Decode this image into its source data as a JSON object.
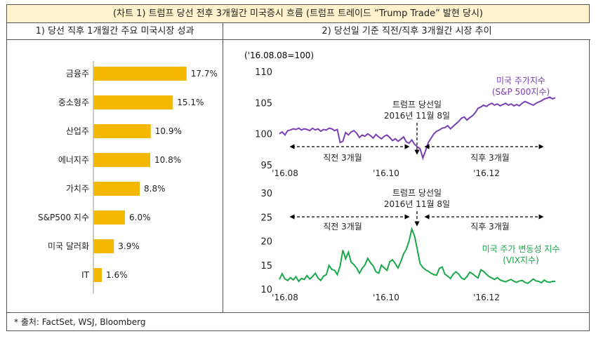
{
  "header": {
    "title": "(차트 1) 트럼프 당선 전후 3개월간 미국증시 흐름 (트럼프 트레이드 “Trump Trade” 발현 당시)"
  },
  "left_panel": {
    "title": "1) 당선 직후 1개월간 주요 미국시장 성과"
  },
  "right_panel": {
    "title": "2) 당선일 기준 직전/직후 3개월간 시장 추이",
    "index_note": "('16.08.08=100)"
  },
  "footer": {
    "source": "* 출처: FactSet, WSJ, Bloomberg"
  },
  "colors": {
    "bar": "#f5b800",
    "sp500": "#7a3fb5",
    "vix": "#1aa84a"
  },
  "chart_data": [
    {
      "type": "bar",
      "orientation": "horizontal",
      "categories": [
        "금융주",
        "중소형주",
        "산업주",
        "에너지주",
        "가치주",
        "S&P500 지수",
        "미국 달러화",
        "IT"
      ],
      "values": [
        17.7,
        15.1,
        10.9,
        10.8,
        8.8,
        6.0,
        3.9,
        1.6
      ],
      "value_labels": [
        "17.7%",
        "15.1%",
        "10.9%",
        "10.8%",
        "8.8%",
        "6.0%",
        "3.9%",
        "1.6%"
      ],
      "xlim": [
        0,
        20
      ]
    },
    {
      "type": "line",
      "ylim": [
        95,
        110
      ],
      "yticks": [
        "110",
        "105",
        "100",
        "95"
      ],
      "xticks": [
        "'16.08",
        "'16.10",
        "'16.12"
      ],
      "annotations": {
        "event": "트럼프 당선일",
        "event_date": "2016년 11월 8일",
        "before": "직전 3개월",
        "after": "직후 3개월"
      },
      "series": [
        {
          "name": "미국 주가지수",
          "name2": "(S&P 500지수)",
          "values": [
            100.0,
            100.3,
            99.8,
            100.5,
            100.6,
            100.8,
            100.7,
            100.9,
            100.6,
            100.8,
            100.7,
            100.5,
            100.9,
            100.6,
            100.8,
            100.4,
            100.7,
            100.6,
            100.9,
            100.8,
            100.5,
            100.7,
            98.6,
            98.8,
            100.2,
            99.8,
            100.3,
            100.5,
            100.1,
            99.4,
            99.8,
            99.6,
            100.0,
            99.7,
            99.3,
            99.9,
            99.5,
            99.2,
            99.6,
            99.8,
            99.4,
            98.9,
            99.2,
            98.8,
            99.1,
            99.5,
            98.7,
            98.5,
            99.0,
            98.3,
            97.9,
            97.6,
            96.1,
            97.3,
            98.6,
            99.3,
            100.0,
            100.4,
            100.6,
            100.9,
            101.0,
            101.3,
            100.8,
            101.2,
            101.6,
            102.0,
            102.5,
            102.7,
            102.2,
            102.6,
            102.9,
            103.4,
            104.1,
            104.3,
            104.6,
            104.4,
            104.7,
            104.9,
            104.6,
            104.8,
            104.5,
            104.7,
            104.9,
            104.6,
            104.8,
            104.5,
            104.7,
            104.5,
            104.9,
            105.2,
            105.0,
            104.8,
            104.6,
            104.9,
            105.1,
            105.3,
            105.6,
            105.7,
            105.9,
            105.6,
            105.8
          ]
        }
      ]
    },
    {
      "type": "line",
      "ylim": [
        10,
        30
      ],
      "yticks": [
        "30",
        "25",
        "20",
        "15",
        "10"
      ],
      "xticks": [
        "'16.08",
        "'16.10",
        "'16.12"
      ],
      "annotations": {
        "event": "트럼프 당선일",
        "event_date": "2016년 11월 8일",
        "before": "직전 3개월",
        "after": "직후 3개월"
      },
      "series": [
        {
          "name": "미국 주가 변동성 지수",
          "name2": "(VIX지수)",
          "values": [
            12.0,
            13.2,
            12.1,
            11.8,
            12.4,
            11.9,
            12.6,
            11.6,
            12.2,
            12.0,
            12.8,
            12.1,
            12.6,
            13.3,
            12.3,
            11.8,
            12.7,
            13.0,
            14.9,
            14.1,
            13.9,
            13.0,
            14.8,
            18.1,
            16.3,
            17.7,
            15.6,
            15.1,
            14.4,
            13.3,
            14.3,
            15.0,
            16.4,
            15.5,
            14.8,
            13.6,
            13.3,
            15.0,
            14.4,
            13.9,
            15.7,
            16.1,
            15.3,
            14.4,
            15.7,
            17.3,
            18.3,
            20.0,
            22.5,
            21.0,
            18.2,
            15.3,
            14.5,
            14.0,
            13.7,
            13.3,
            13.0,
            12.9,
            14.3,
            14.6,
            13.1,
            12.7,
            12.2,
            13.1,
            13.6,
            13.1,
            12.3,
            12.0,
            12.6,
            13.5,
            13.2,
            12.7,
            12.3,
            14.0,
            13.7,
            13.1,
            12.6,
            12.3,
            12.0,
            12.4,
            11.9,
            11.7,
            11.5,
            11.8,
            12.0,
            11.6,
            11.4,
            11.7,
            11.8,
            11.4,
            11.2,
            11.6,
            12.1,
            11.7,
            11.6,
            11.3,
            11.9,
            11.5,
            11.4,
            11.6,
            11.6
          ]
        }
      ]
    }
  ]
}
